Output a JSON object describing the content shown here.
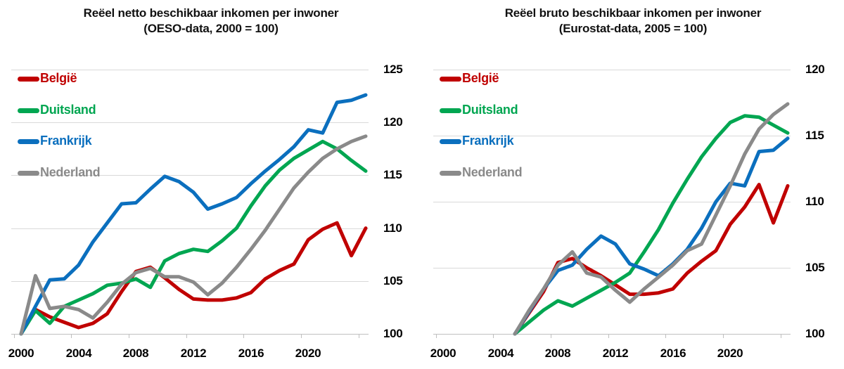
{
  "page": {
    "background": "#ffffff"
  },
  "colors": {
    "belgie": "#c00000",
    "duitsland": "#00a651",
    "frankrijk": "#0b6fbe",
    "nederland": "#8a8a8a",
    "gridline": "#d9d9d9",
    "axis": "#bfbfbf",
    "title_text": "#111111"
  },
  "chart_data": [
    {
      "type": "line",
      "title_line1": "Reëel netto beschikbaar inkomen per inwoner",
      "title_line2": "(OESO-data, 2000 = 100)",
      "x_axis_start": 2000,
      "x_axis_end": 2024,
      "data_start_year": 2000,
      "x_tick_labels": [
        "2000",
        "2004",
        "2008",
        "2012",
        "2016",
        "2020"
      ],
      "y_ticks": [
        "100",
        "105",
        "110",
        "115",
        "120",
        "125"
      ],
      "ylim": [
        100,
        125
      ],
      "grid": true,
      "legend_position": "top-left",
      "series": [
        {
          "name": "België",
          "color_key": "belgie",
          "values": [
            100,
            102.3,
            101.6,
            101.1,
            100.6,
            101.0,
            101.9,
            104.0,
            105.9,
            106.3,
            105.3,
            104.2,
            103.3,
            103.2,
            103.2,
            103.4,
            103.9,
            105.2,
            106.0,
            106.6,
            108.9,
            109.9,
            110.5,
            107.4,
            110.0
          ]
        },
        {
          "name": "Duitsland",
          "color_key": "duitsland",
          "values": [
            100,
            102.2,
            101.0,
            102.6,
            103.2,
            103.8,
            104.6,
            104.8,
            105.2,
            104.4,
            106.9,
            107.6,
            108.0,
            107.8,
            108.8,
            110.0,
            112.1,
            114.0,
            115.5,
            116.6,
            117.4,
            118.2,
            117.5,
            116.4,
            115.4
          ]
        },
        {
          "name": "Frankrijk",
          "color_key": "frankrijk",
          "values": [
            100,
            102.6,
            105.1,
            105.2,
            106.5,
            108.7,
            110.5,
            112.3,
            112.4,
            113.7,
            114.9,
            114.4,
            113.4,
            111.8,
            112.3,
            112.9,
            114.2,
            115.4,
            116.5,
            117.7,
            119.3,
            119.0,
            121.9,
            122.1,
            122.6
          ]
        },
        {
          "name": "Nederland",
          "color_key": "nederland",
          "values": [
            100,
            105.5,
            102.4,
            102.6,
            102.3,
            101.5,
            103.0,
            104.7,
            105.8,
            106.2,
            105.4,
            105.4,
            104.9,
            103.7,
            104.8,
            106.3,
            108.0,
            109.8,
            111.8,
            113.8,
            115.3,
            116.6,
            117.5,
            118.2,
            118.7
          ]
        }
      ]
    },
    {
      "type": "line",
      "title_line1": "Reëel bruto beschikbaar inkomen per inwoner",
      "title_line2": "(Eurostat-data, 2005 = 100)",
      "x_axis_start": 2000,
      "x_axis_end": 2024,
      "data_start_year": 2005,
      "x_tick_labels": [
        "2000",
        "2004",
        "2008",
        "2012",
        "2016",
        "2020"
      ],
      "y_ticks": [
        "100",
        "105",
        "110",
        "115",
        "120"
      ],
      "ylim": [
        100,
        120
      ],
      "grid": true,
      "legend_position": "top-left",
      "series": [
        {
          "name": "België",
          "color_key": "belgie",
          "values": [
            100,
            101.6,
            103.2,
            105.4,
            105.7,
            105.0,
            104.4,
            103.7,
            103.0,
            103.0,
            103.1,
            103.4,
            104.6,
            105.5,
            106.3,
            108.3,
            109.6,
            111.3,
            108.4,
            111.2
          ]
        },
        {
          "name": "Duitsland",
          "color_key": "duitsland",
          "values": [
            100,
            100.9,
            101.8,
            102.5,
            102.1,
            102.7,
            103.3,
            103.9,
            104.6,
            106.2,
            107.9,
            109.9,
            111.7,
            113.4,
            114.8,
            116.0,
            116.5,
            116.4,
            115.8,
            115.2
          ]
        },
        {
          "name": "Frankrijk",
          "color_key": "frankrijk",
          "values": [
            100,
            101.7,
            103.4,
            104.8,
            105.2,
            106.4,
            107.4,
            106.8,
            105.3,
            104.9,
            104.4,
            105.3,
            106.4,
            108.0,
            110.0,
            111.4,
            111.2,
            113.8,
            113.9,
            114.8
          ]
        },
        {
          "name": "Nederland",
          "color_key": "nederland",
          "values": [
            100,
            101.8,
            103.4,
            105.2,
            106.2,
            104.6,
            104.3,
            103.3,
            102.4,
            103.4,
            104.3,
            105.2,
            106.3,
            106.8,
            109.0,
            111.2,
            113.6,
            115.5,
            116.6,
            117.4
          ]
        }
      ]
    }
  ]
}
